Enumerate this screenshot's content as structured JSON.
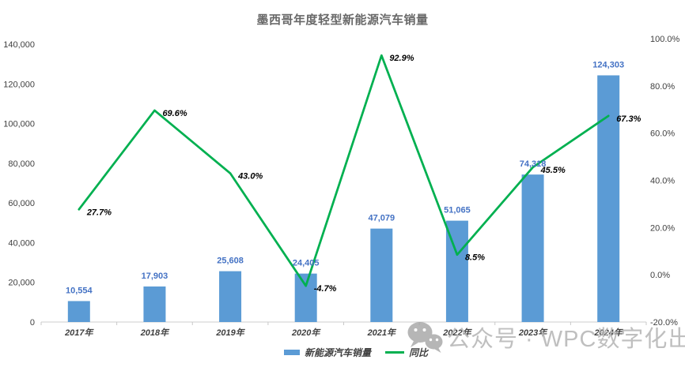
{
  "chart_data": {
    "type": "combo",
    "title": "墨西哥年度轻型新能源汽车销量",
    "categories": [
      "2017年",
      "2018年",
      "2019年",
      "2020年",
      "2021年",
      "2022年",
      "2023年",
      "2024年"
    ],
    "series": [
      {
        "name": "新能源汽车销量",
        "chart": "bar",
        "axis": "left",
        "values": [
          10554,
          17903,
          25608,
          24405,
          47079,
          51065,
          74318,
          124303
        ],
        "labels": [
          "10,554",
          "17,903",
          "25,608",
          "24,405",
          "47,079",
          "51,065",
          "74,318",
          "124,303"
        ]
      },
      {
        "name": "同比",
        "chart": "line",
        "axis": "right",
        "values": [
          27.7,
          69.6,
          43.0,
          -4.7,
          92.9,
          8.5,
          45.5,
          67.3
        ],
        "labels": [
          "27.7%",
          "69.6%",
          "43.0%",
          "-4.7%",
          "92.9%",
          "8.5%",
          "45.5%",
          "67.3%"
        ]
      }
    ],
    "left_axis": {
      "min": 0,
      "max": 140000,
      "step": 20000,
      "tick_labels": [
        "0",
        "20,000",
        "40,000",
        "60,000",
        "80,000",
        "100,000",
        "120,000",
        "140,000"
      ]
    },
    "right_axis": {
      "min": -20,
      "max": 100,
      "step": 20,
      "tick_labels": [
        "-20.0%",
        "0.0%",
        "20.0%",
        "40.0%",
        "60.0%",
        "80.0%",
        "100.0%"
      ]
    },
    "legend_position": "bottom",
    "grid": false
  },
  "colors": {
    "bar": "#5B9BD5",
    "bar_label": "#4472C4",
    "line": "#00B050",
    "point_label": "#000000",
    "title": "#686868",
    "axis_text": "#3f3f3f",
    "axis_line": "#d6d6d6",
    "tick_mark": "#c9c9c9",
    "watermark_text": "#b4b4b4",
    "watermark_icon": "#9e9e9e"
  },
  "watermark": {
    "icon": "wechat-icon",
    "text": "公众号 · WPC数字化出海"
  }
}
